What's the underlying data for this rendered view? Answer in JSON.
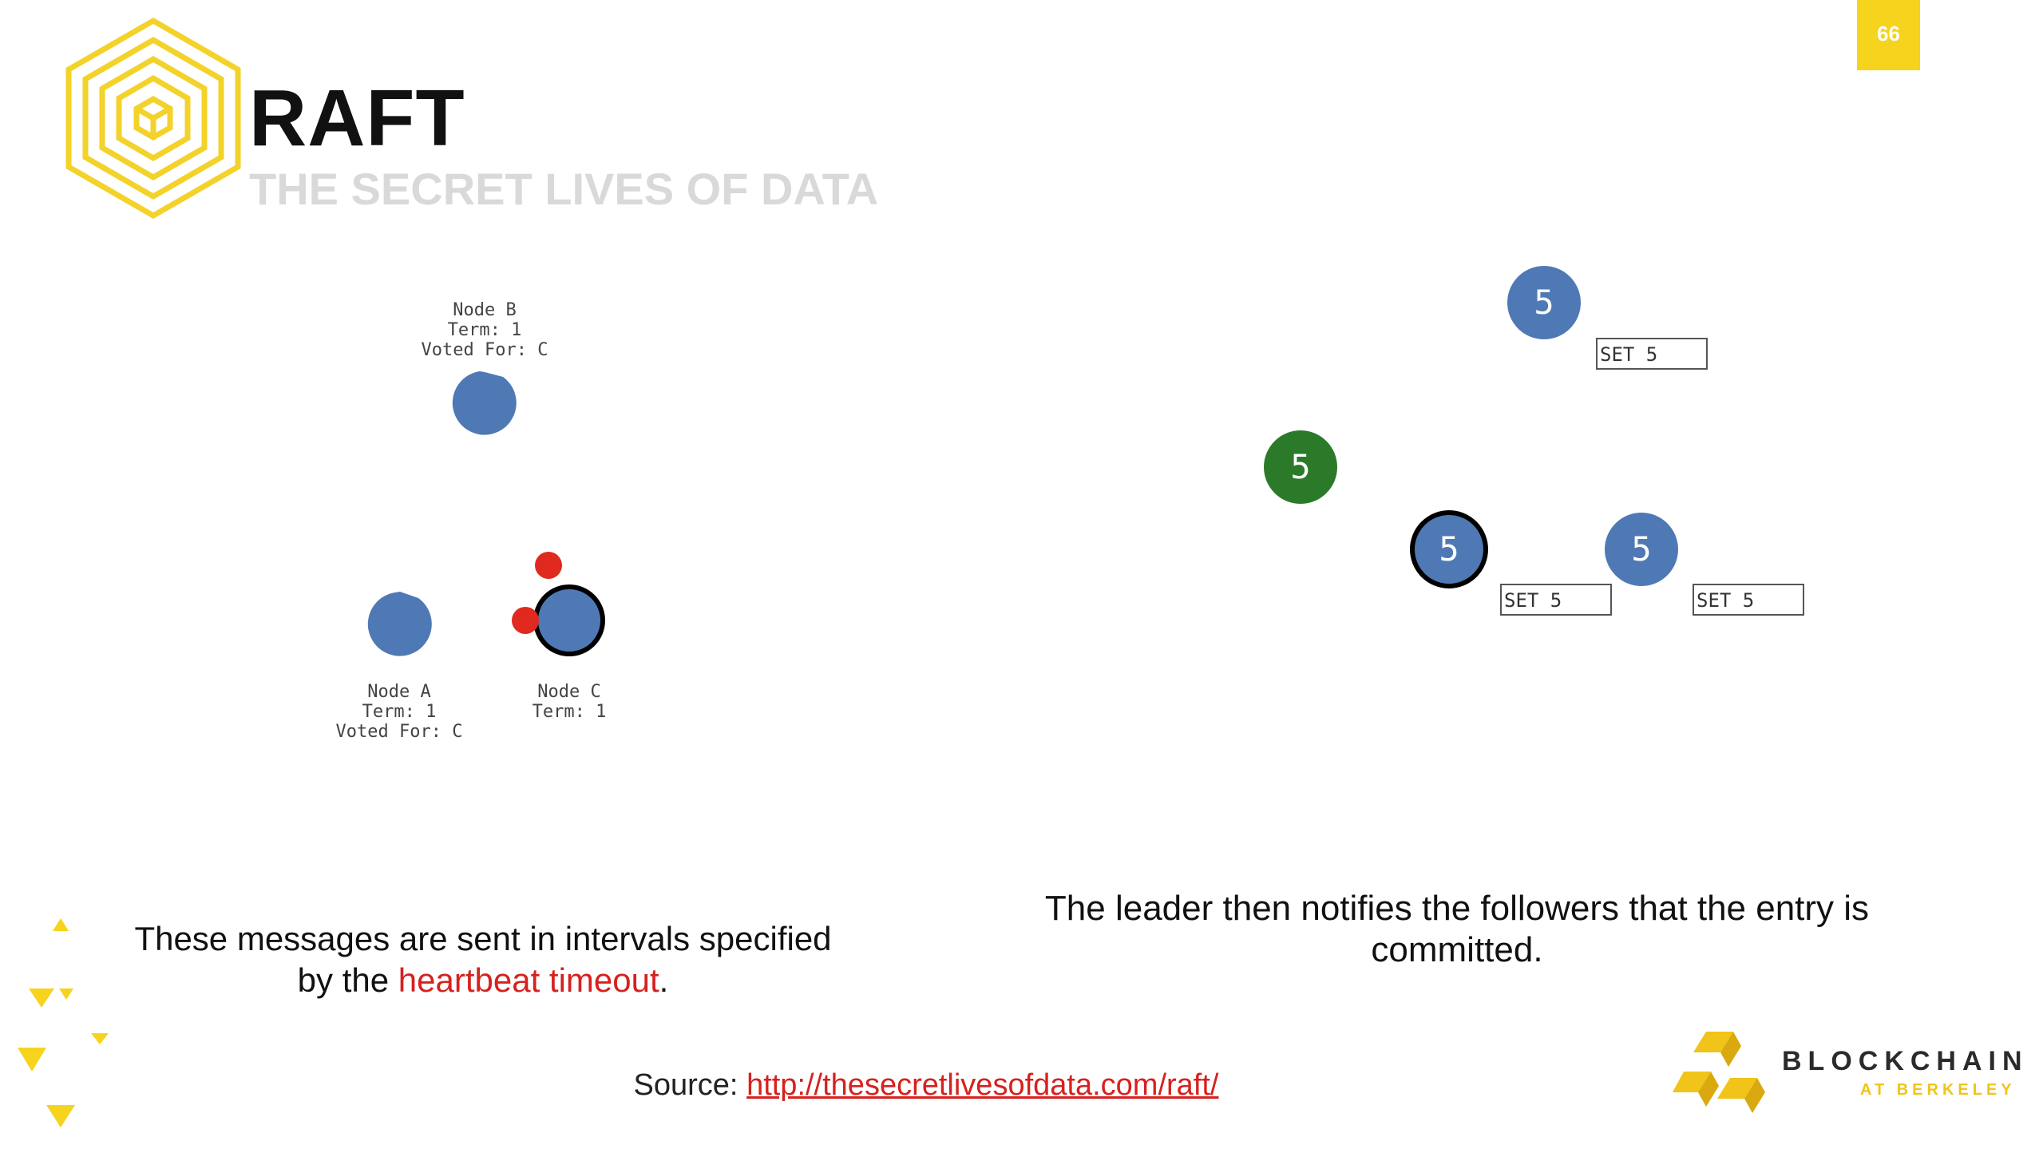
{
  "slide": {
    "number": "66"
  },
  "header": {
    "title": "RAFT",
    "subtitle": "THE SECRET LIVES OF DATA"
  },
  "left_diagram": {
    "node_b": {
      "label": "Node B\nTerm: 1\nVoted For: C"
    },
    "node_a": {
      "label": "Node A\nTerm: 1\nVoted For: C"
    },
    "node_c": {
      "label": "Node C\nTerm: 1"
    }
  },
  "right_diagram": {
    "leader_value": "5",
    "client_value": "5",
    "follower_values": [
      "5",
      "5"
    ],
    "entries": [
      "SET 5",
      "SET 5",
      "SET 5"
    ]
  },
  "captions": {
    "left_prefix": "These messages are sent in intervals specified",
    "left_line2_prefix": "by the ",
    "left_highlight": "heartbeat timeout",
    "left_suffix": ".",
    "right": "The leader then notifies the followers that the entry is committed."
  },
  "footer": {
    "source_label": "Source: ",
    "source_url": "http://thesecretlivesofdata.com/raft/",
    "brand_name": "BLOCKCHAIN",
    "brand_sub": "AT BERKELEY"
  },
  "colors": {
    "node_blue": "#4f79b4",
    "client_green": "#2a7a2a",
    "message_red": "#e02a1f",
    "accent_yellow": "#f6d31d"
  }
}
